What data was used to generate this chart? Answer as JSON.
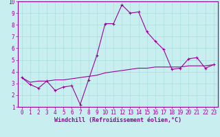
{
  "xlabel": "Windchill (Refroidissement éolien,°C)",
  "ylabel": "",
  "xlim": [
    -0.5,
    23.5
  ],
  "ylim": [
    1,
    10
  ],
  "xticks": [
    0,
    1,
    2,
    3,
    4,
    5,
    6,
    7,
    8,
    9,
    10,
    11,
    12,
    13,
    14,
    15,
    16,
    17,
    18,
    19,
    20,
    21,
    22,
    23
  ],
  "yticks": [
    1,
    2,
    3,
    4,
    5,
    6,
    7,
    8,
    9,
    10
  ],
  "bg_color": "#c8eef0",
  "line_color": "#990099",
  "grid_color": "#aadddd",
  "axis_color": "#8800aa",
  "curve1_x": [
    0,
    1,
    2,
    3,
    4,
    5,
    6,
    7,
    8,
    9,
    10,
    11,
    12,
    13,
    14,
    15,
    16,
    17,
    18,
    19,
    20,
    21,
    22,
    23
  ],
  "curve1_y": [
    3.5,
    2.9,
    2.6,
    3.2,
    2.4,
    2.7,
    2.8,
    1.2,
    3.3,
    5.4,
    8.1,
    8.1,
    9.7,
    9.0,
    9.1,
    7.4,
    6.6,
    5.9,
    4.2,
    4.3,
    5.1,
    5.2,
    4.3,
    4.6
  ],
  "curve2_x": [
    0,
    1,
    2,
    3,
    4,
    5,
    6,
    7,
    8,
    9,
    10,
    11,
    12,
    13,
    14,
    15,
    16,
    17,
    18,
    19,
    20,
    21,
    22,
    23
  ],
  "curve2_y": [
    3.5,
    3.1,
    3.2,
    3.2,
    3.3,
    3.3,
    3.4,
    3.5,
    3.6,
    3.7,
    3.9,
    4.0,
    4.1,
    4.2,
    4.3,
    4.3,
    4.4,
    4.4,
    4.4,
    4.4,
    4.5,
    4.5,
    4.5,
    4.6
  ],
  "tick_fontsize": 5.5,
  "xlabel_fontsize": 6.0
}
